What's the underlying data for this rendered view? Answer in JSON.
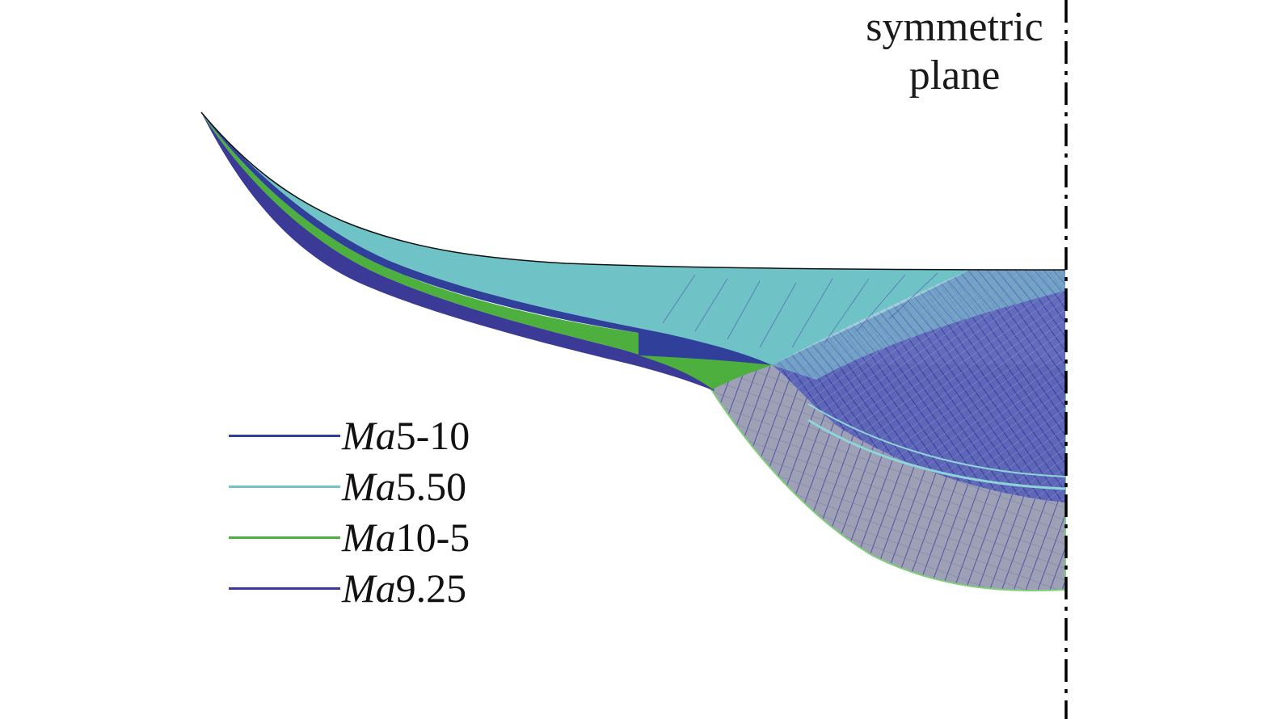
{
  "plane_label": {
    "line1": "symmetric",
    "line2": "plane"
  },
  "legend": {
    "items": [
      {
        "prefix": "Ma",
        "value": "5-10",
        "color": "#2f3f9a"
      },
      {
        "prefix": "Ma",
        "value": "5.50",
        "color": "#72c3c6"
      },
      {
        "prefix": "Ma",
        "value": "10-5",
        "color": "#4caf40"
      },
      {
        "prefix": "Ma",
        "value": "9.25",
        "color": "#3a3a96"
      }
    ]
  },
  "colors": {
    "surface_cyan": "#6fc3c7",
    "surface_green": "#4caf3e",
    "surface_blue": "#2f3f9a",
    "surface_violet": "#3b3b97",
    "grid_lines": "#4a4aa8",
    "grey_mesh": "#9a9a9a",
    "axis": "#000000"
  }
}
